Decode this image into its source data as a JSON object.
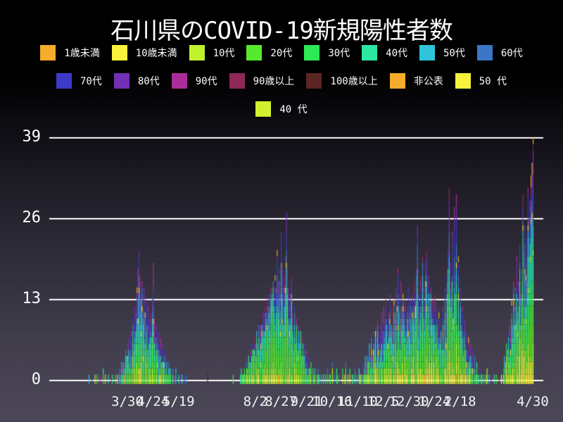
{
  "title": "石川県のCOVID-19新規陽性者数",
  "legend": {
    "rows": [
      [
        0,
        1,
        2,
        3,
        4,
        5,
        6,
        7
      ],
      [
        8,
        9,
        10,
        11,
        12,
        13,
        14
      ],
      [
        15
      ]
    ],
    "position": "top"
  },
  "chart_data": {
    "type": "bar",
    "stacked": true,
    "title": "石川県のCOVID-19新規陽性者数",
    "xlabel": "",
    "ylabel": "",
    "ylim": [
      0,
      39
    ],
    "grid": true,
    "y_ticks": [
      0,
      13,
      26,
      39
    ],
    "x_ticks": [
      {
        "label": "3/30",
        "day": 38
      },
      {
        "label": "4/24",
        "day": 63
      },
      {
        "label": "5/19",
        "day": 88
      },
      {
        "label": "8/2",
        "day": 163
      },
      {
        "label": "8/27",
        "day": 188
      },
      {
        "label": "9/21",
        "day": 213
      },
      {
        "label": "10/16",
        "day": 238
      },
      {
        "label": "11/10",
        "day": 263
      },
      {
        "label": "12/5",
        "day": 288
      },
      {
        "label": "12/30",
        "day": 313
      },
      {
        "label": "1/24",
        "day": 338
      },
      {
        "label": "2/18",
        "day": 363
      },
      {
        "label": "4/30",
        "day": 434
      }
    ],
    "age_groups": [
      {
        "name": "1歳未満",
        "color": "#F5AD2B"
      },
      {
        "name": "10歳未満",
        "color": "#FAF13F"
      },
      {
        "name": "10代",
        "color": "#BFF22D"
      },
      {
        "name": "20代",
        "color": "#55EA2D"
      },
      {
        "name": "30代",
        "color": "#2DE955"
      },
      {
        "name": "40代",
        "color": "#2DE8A1"
      },
      {
        "name": "50代",
        "color": "#2EC4DB"
      },
      {
        "name": "60代",
        "color": "#3A77C8"
      },
      {
        "name": "70代",
        "color": "#3C3BC7"
      },
      {
        "name": "80代",
        "color": "#7230B6"
      },
      {
        "name": "90代",
        "color": "#AB2D9B"
      },
      {
        "name": "90歳以上",
        "color": "#8E2959"
      },
      {
        "name": "100歳以上",
        "color": "#5D2424"
      },
      {
        "name": "非公表",
        "color": "#F5AD2B"
      },
      {
        "name": "50 代",
        "color": "#F7F23B"
      },
      {
        "name": "40 代",
        "color": "#D3F22D"
      }
    ],
    "daily_totals": [
      1,
      0,
      0,
      1,
      0,
      0,
      1,
      0,
      1,
      0,
      0,
      1,
      0,
      0,
      2,
      0,
      1,
      0,
      0,
      1,
      0,
      0,
      1,
      1,
      0,
      0,
      1,
      0,
      2,
      1,
      2,
      1,
      3,
      2,
      4,
      3,
      5,
      4,
      6,
      7,
      5,
      8,
      6,
      10,
      9,
      12,
      11,
      15,
      18,
      21,
      17,
      14,
      16,
      13,
      15,
      11,
      13,
      10,
      12,
      9,
      11,
      8,
      13,
      19,
      10,
      7,
      9,
      6,
      8,
      5,
      7,
      4,
      6,
      3,
      5,
      4,
      3,
      2,
      3,
      2,
      2,
      1,
      2,
      1,
      1,
      2,
      1,
      0,
      1,
      1,
      0,
      1,
      0,
      1,
      0,
      1,
      0,
      0,
      0,
      0,
      0,
      0,
      0,
      0,
      0,
      0,
      0,
      0,
      0,
      0,
      0,
      0,
      0,
      0,
      0,
      0,
      1,
      0,
      0,
      0,
      0,
      0,
      0,
      0,
      0,
      0,
      0,
      0,
      0,
      0,
      0,
      0,
      0,
      0,
      0,
      0,
      0,
      0,
      0,
      0,
      0,
      1,
      0,
      0,
      0,
      0,
      0,
      0,
      1,
      2,
      1,
      1,
      2,
      1,
      3,
      2,
      4,
      3,
      5,
      4,
      6,
      5,
      7,
      6,
      8,
      7,
      9,
      8,
      10,
      9,
      11,
      10,
      12,
      11,
      13,
      12,
      14,
      13,
      15,
      14,
      16,
      13,
      17,
      15,
      21,
      16,
      18,
      14,
      24,
      19,
      15,
      17,
      20,
      27,
      18,
      15,
      12,
      14,
      17,
      11,
      9,
      12,
      8,
      10,
      7,
      9,
      6,
      8,
      5,
      7,
      4,
      6,
      3,
      5,
      2,
      4,
      2,
      3,
      1,
      2,
      1,
      2,
      1,
      1,
      2,
      1,
      0,
      1,
      0,
      1,
      0,
      1,
      0,
      2,
      0,
      1,
      1,
      0,
      3,
      0,
      1,
      0,
      2,
      1,
      0,
      1,
      0,
      0,
      2,
      0,
      1,
      3,
      0,
      1,
      0,
      2,
      0,
      1,
      1,
      0,
      2,
      0,
      1,
      0,
      3,
      1,
      2,
      1,
      3,
      2,
      4,
      3,
      5,
      4,
      6,
      5,
      7,
      4,
      8,
      6,
      9,
      7,
      10,
      8,
      6,
      9,
      11,
      8,
      12,
      9,
      13,
      10,
      8,
      11,
      14,
      10,
      12,
      9,
      13,
      11,
      15,
      12,
      18,
      13,
      10,
      16,
      12,
      14,
      11,
      13,
      9,
      12,
      15,
      11,
      13,
      10,
      14,
      12,
      16,
      13,
      18,
      25,
      15,
      12,
      17,
      13,
      20,
      16,
      12,
      19,
      21,
      14,
      17,
      12,
      15,
      11,
      13,
      10,
      14,
      9,
      12,
      8,
      11,
      7,
      10,
      8,
      12,
      9,
      15,
      11,
      18,
      22,
      31,
      19,
      16,
      24,
      14,
      28,
      17,
      30,
      13,
      20,
      11,
      15,
      9,
      12,
      7,
      10,
      6,
      8,
      5,
      7,
      4,
      6,
      3,
      5,
      2,
      4,
      2,
      3,
      1,
      1,
      0,
      2,
      1,
      0,
      1,
      0,
      1,
      2,
      0,
      1,
      0,
      1,
      0,
      0,
      1,
      0,
      1,
      0,
      0,
      1,
      0,
      1,
      0,
      2,
      4,
      3,
      6,
      5,
      8,
      10,
      7,
      13,
      9,
      17,
      12,
      15,
      20,
      11,
      16,
      22,
      14,
      18,
      30,
      21,
      25,
      17,
      23,
      31,
      26,
      29,
      33,
      35,
      39
    ],
    "notable_day_overrides": {
      "63": {
        "90代": 3
      },
      "116": {
        "100歳以上": 1
      },
      "141": {
        "20代": 1
      },
      "352": {
        "80代": 3,
        "90歳以上": 1
      },
      "413": {
        "非公表": 1
      },
      "424": {
        "90歳以上": 1
      },
      "434": {
        "100歳以上": 1
      }
    }
  }
}
